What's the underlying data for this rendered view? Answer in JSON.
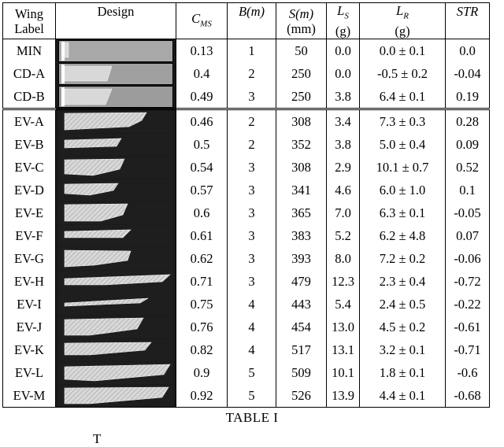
{
  "header": {
    "wing_label_1": "Wing",
    "wing_label_2": "Label",
    "design": "Design",
    "cms": "C",
    "cms_sub": "MS",
    "b": "B(m)",
    "s": "S(m)",
    "s_unit": "(mm)",
    "ls": "L",
    "ls_sub": "S",
    "ls_unit": "(g)",
    "lr": "L",
    "lr_sub": "R",
    "lr_unit": "(g)",
    "str": "STR"
  },
  "rows": [
    {
      "label": "MIN",
      "cms": "0.13",
      "b": "1",
      "s": "50",
      "ls": "0.0",
      "lr": "0.0 ± 0.1",
      "str": "0.0"
    },
    {
      "label": "CD-A",
      "cms": "0.4",
      "b": "2",
      "s": "250",
      "ls": "0.0",
      "lr": "-0.5 ± 0.2",
      "str": "-0.04"
    },
    {
      "label": "CD-B",
      "cms": "0.49",
      "b": "3",
      "s": "250",
      "ls": "3.8",
      "lr": "6.4 ± 0.1",
      "str": "0.19"
    },
    {
      "label": "EV-A",
      "cms": "0.46",
      "b": "2",
      "s": "308",
      "ls": "3.4",
      "lr": "7.3 ± 0.3",
      "str": "0.28"
    },
    {
      "label": "EV-B",
      "cms": "0.5",
      "b": "2",
      "s": "352",
      "ls": "3.8",
      "lr": "5.0 ± 0.4",
      "str": "0.09"
    },
    {
      "label": "EV-C",
      "cms": "0.54",
      "b": "3",
      "s": "308",
      "ls": "2.9",
      "lr": "10.1 ± 0.7",
      "str": "0.52"
    },
    {
      "label": "EV-D",
      "cms": "0.57",
      "b": "3",
      "s": "341",
      "ls": "4.6",
      "lr": "6.0 ± 1.0",
      "str": "0.1"
    },
    {
      "label": "EV-E",
      "cms": "0.6",
      "b": "3",
      "s": "365",
      "ls": "7.0",
      "lr": "6.3 ± 0.1",
      "str": "-0.05"
    },
    {
      "label": "EV-F",
      "cms": "0.61",
      "b": "3",
      "s": "383",
      "ls": "5.2",
      "lr": "6.2 ± 4.8",
      "str": "0.07"
    },
    {
      "label": "EV-G",
      "cms": "0.62",
      "b": "3",
      "s": "393",
      "ls": "8.0",
      "lr": "7.2 ± 0.2",
      "str": "-0.06"
    },
    {
      "label": "EV-H",
      "cms": "0.71",
      "b": "3",
      "s": "479",
      "ls": "12.3",
      "lr": "2.3 ± 0.4",
      "str": "-0.72"
    },
    {
      "label": "EV-I",
      "cms": "0.75",
      "b": "4",
      "s": "443",
      "ls": "5.4",
      "lr": "2.4 ± 0.5",
      "str": "-0.22"
    },
    {
      "label": "EV-J",
      "cms": "0.76",
      "b": "4",
      "s": "454",
      "ls": "13.0",
      "lr": "4.5 ± 0.2",
      "str": "-0.61"
    },
    {
      "label": "EV-K",
      "cms": "0.82",
      "b": "4",
      "s": "517",
      "ls": "13.1",
      "lr": "3.2 ± 0.1",
      "str": "-0.71"
    },
    {
      "label": "EV-L",
      "cms": "0.9",
      "b": "5",
      "s": "509",
      "ls": "10.1",
      "lr": "1.8 ± 0.1",
      "str": "-0.6"
    },
    {
      "label": "EV-M",
      "cms": "0.92",
      "b": "5",
      "s": "526",
      "ls": "13.9",
      "lr": "4.4 ± 0.1",
      "str": "-0.68"
    }
  ],
  "caption": "TABLE I",
  "caption_next": "T"
}
